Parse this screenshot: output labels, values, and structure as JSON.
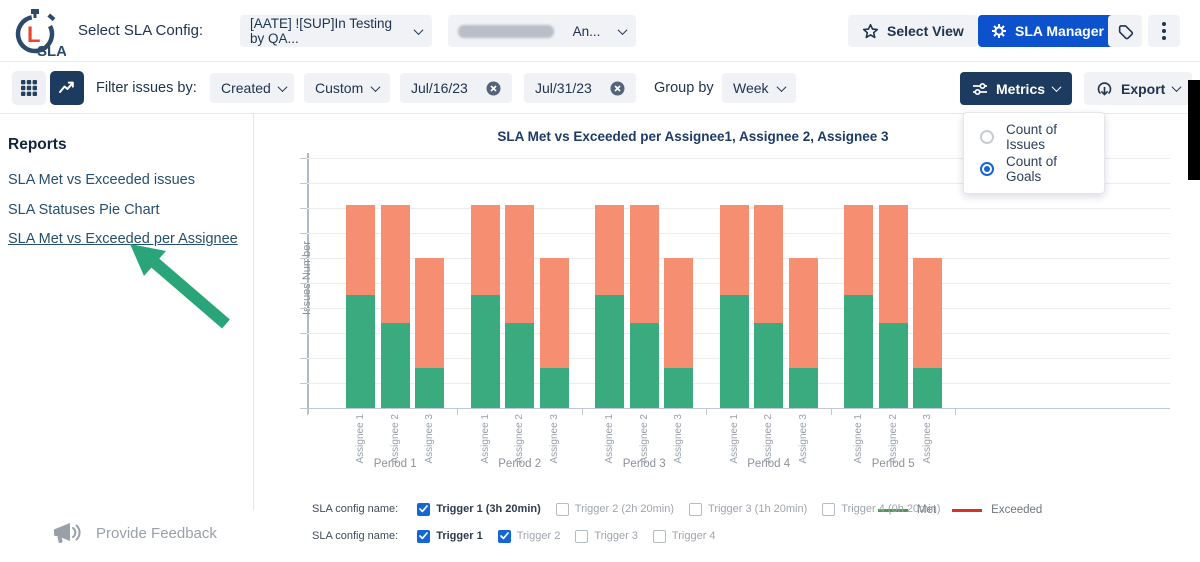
{
  "header": {
    "logo_text": "SLA",
    "config_label": "Select SLA Config:",
    "config_value": "[AATE] ![SUP]In Testing by QA...",
    "assignee_value_truncated": "An...",
    "select_view_label": "Select View",
    "sla_manager_label": "SLA Manager"
  },
  "filterbar": {
    "filter_label": "Filter issues by:",
    "field_dropdown_value": "Created",
    "range_dropdown_value": "Custom",
    "date_from": "Jul/16/23",
    "date_to": "Jul/31/23",
    "group_by_label": "Group by",
    "group_by_value": "Week",
    "metrics_label": "Metrics",
    "export_label": "Export"
  },
  "metrics_menu": {
    "options": [
      {
        "label": "Count of Issues",
        "selected": false
      },
      {
        "label": "Count of Goals",
        "selected": true
      }
    ]
  },
  "sidebar": {
    "heading": "Reports",
    "items": [
      {
        "label": "SLA Met vs Exceeded issues",
        "active": false
      },
      {
        "label": "SLA Statuses Pie Chart",
        "active": false
      },
      {
        "label": "SLA Met vs Exceeded per Assignee",
        "active": true
      }
    ],
    "arrow_color": "#2aa579"
  },
  "chart_data": {
    "type": "bar",
    "stacked": true,
    "title": "SLA Met vs Exceeded per Assignee1, Assignee 2, Assignee 3",
    "ylabel": "Issues Number",
    "xlabel": "",
    "categories": [
      "Period 1",
      "Period 2",
      "Period 3",
      "Period 4",
      "Period 5"
    ],
    "bar_labels": [
      "Assignee 1",
      "Assignee 2",
      "Assignee 3"
    ],
    "y_axis": {
      "min": 0,
      "max": 10,
      "gridlines": 10,
      "tick_labels_visible": false
    },
    "series": [
      {
        "name": "Met",
        "color": "#3aab7e",
        "values": [
          [
            4.5,
            3.4,
            1.6
          ],
          [
            4.5,
            3.4,
            1.6
          ],
          [
            4.5,
            3.4,
            1.6
          ],
          [
            4.5,
            3.4,
            1.6
          ],
          [
            4.5,
            3.4,
            1.6
          ]
        ]
      },
      {
        "name": "Exceeded",
        "color": "#f68f72",
        "values": [
          [
            3.6,
            4.7,
            4.4
          ],
          [
            3.6,
            4.7,
            4.4
          ],
          [
            3.6,
            4.7,
            4.4
          ],
          [
            3.6,
            4.7,
            4.4
          ],
          [
            3.6,
            4.7,
            4.4
          ]
        ]
      }
    ],
    "legend": {
      "position": "bottom",
      "items": [
        {
          "label": "Met",
          "color": "#4c9a52"
        },
        {
          "label": "Exceeded",
          "color": "#d33426"
        }
      ]
    }
  },
  "controls": {
    "rows": [
      {
        "label": "SLA config name:",
        "checkboxes": [
          {
            "label": "Trigger 1 (3h 20min)",
            "checked": true,
            "emphasis": true
          },
          {
            "label": "Trigger 2 (2h 20min)",
            "checked": false,
            "emphasis": false
          },
          {
            "label": "Trigger 3 (1h 20min)",
            "checked": false,
            "emphasis": false
          },
          {
            "label": "Trigger 4 (0h 20min)",
            "checked": false,
            "emphasis": false
          }
        ]
      },
      {
        "label": "SLA config name:",
        "checkboxes": [
          {
            "label": "Trigger 1",
            "checked": true,
            "emphasis": true
          },
          {
            "label": "Trigger 2",
            "checked": true,
            "emphasis": false
          },
          {
            "label": "Trigger 3",
            "checked": false,
            "emphasis": false
          },
          {
            "label": "Trigger 4",
            "checked": false,
            "emphasis": false
          }
        ]
      }
    ]
  },
  "footer": {
    "feedback_label": "Provide Feedback"
  },
  "colors": {
    "accent_blue": "#0b52cc",
    "navy": "#1d3a5f",
    "bar_met": "#3aab7e",
    "bar_exceeded": "#f68f72",
    "annotation_arrow": "#2aa579",
    "checkbox_checked": "#1467d2",
    "radio_selected": "#1565d8"
  }
}
